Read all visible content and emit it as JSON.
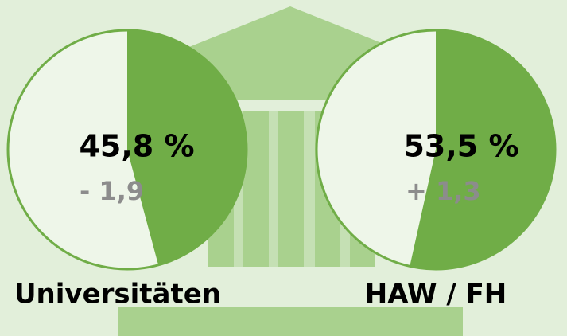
{
  "chart_data": [
    {
      "type": "pie",
      "title": "Universitäten",
      "values": [
        45.8
      ],
      "value_labels": [
        "45,8 %"
      ],
      "color": "#70ad47",
      "annotation": "- 1,9"
    },
    {
      "type": "pie",
      "title": "HAW / FH",
      "values": [
        53.5
      ],
      "value_labels": [
        "53,5 %"
      ],
      "color": "#70ad47",
      "annotation": "+ 1,3"
    }
  ]
}
